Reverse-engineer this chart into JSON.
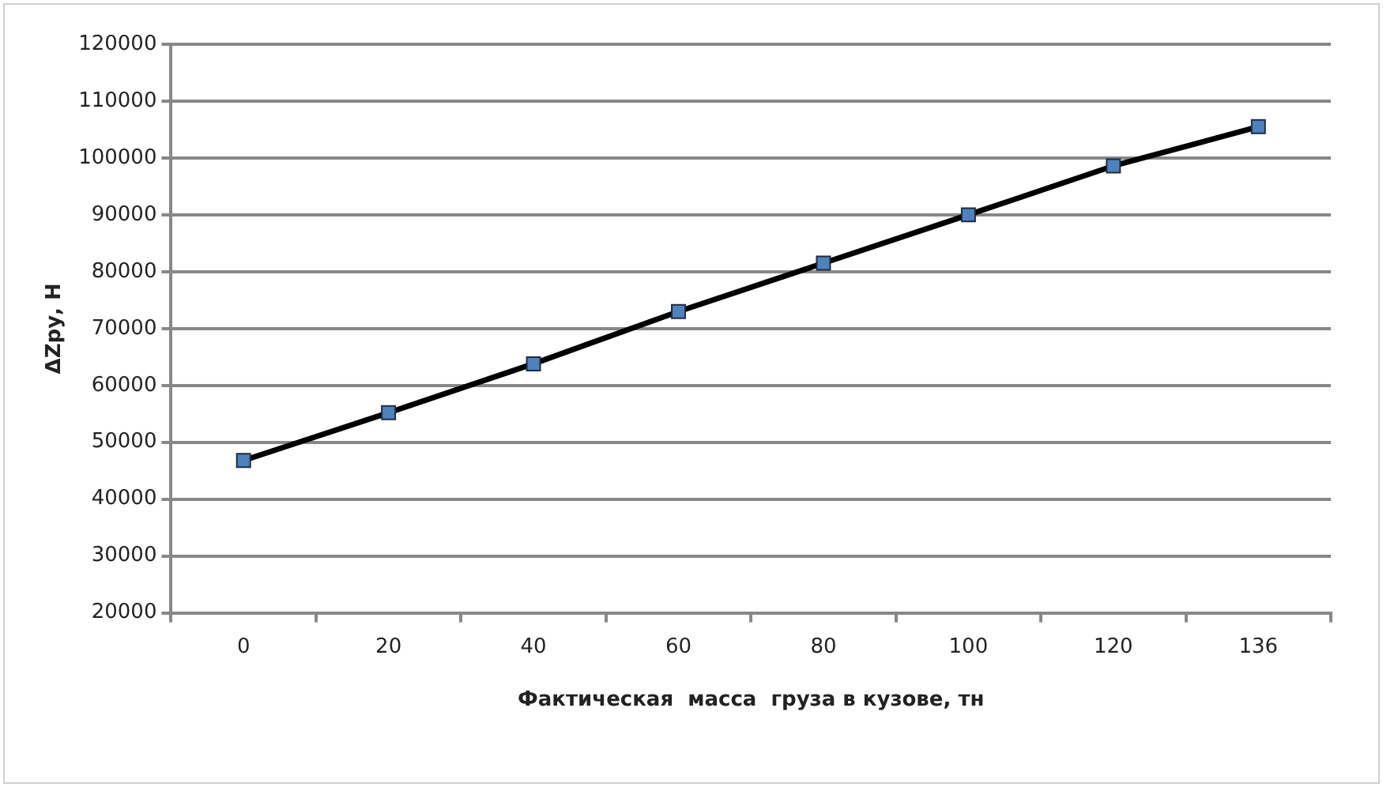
{
  "chart_data": {
    "type": "line",
    "xlabel": "Фактическая  масса  груза в кузове, тн",
    "ylabel": "ΔZру, Н",
    "categories": [
      "0",
      "20",
      "40",
      "60",
      "80",
      "100",
      "120",
      "136"
    ],
    "series": [
      {
        "color": "#4f81bd",
        "values": [
          46800,
          55200,
          63800,
          73000,
          81500,
          90000,
          98600,
          105500
        ]
      }
    ],
    "ylim": [
      20000,
      120000
    ],
    "yticks": [
      20000,
      30000,
      40000,
      50000,
      60000,
      70000,
      80000,
      90000,
      100000,
      110000,
      120000
    ],
    "grid": "y",
    "legend": false,
    "marker": "square",
    "line_style": "solid"
  }
}
